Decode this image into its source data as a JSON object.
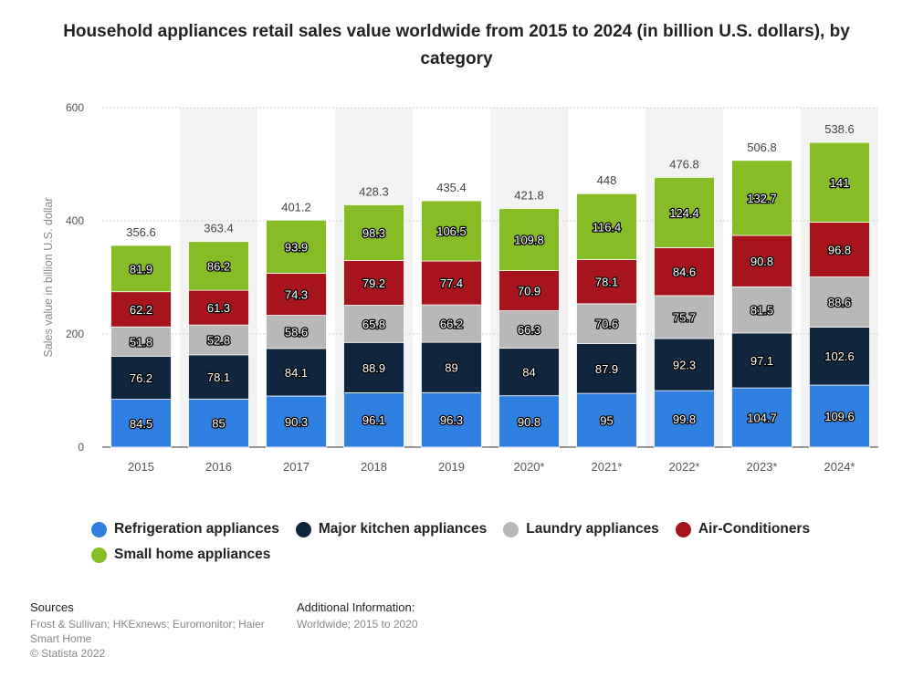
{
  "chart_data": {
    "type": "bar",
    "stacked": true,
    "title": "Household appliances retail sales value worldwide from 2015 to 2024 (in billion U.S. dollars), by category",
    "xlabel": "",
    "ylabel": "Sales value in billion U.S. dollar",
    "ylim": [
      0,
      600
    ],
    "yticks": [
      0,
      200,
      400,
      600
    ],
    "categories": [
      "2015",
      "2016",
      "2017",
      "2018",
      "2019",
      "2020*",
      "2021*",
      "2022*",
      "2023*",
      "2024*"
    ],
    "totals": [
      "356.6",
      "363.4",
      "401.2",
      "428.3",
      "435.4",
      "421.8",
      "448",
      "476.8",
      "506.8",
      "538.6"
    ],
    "series": [
      {
        "name": "Refrigeration appliances",
        "color": "#2e7fe0",
        "values": [
          84.5,
          85,
          90.3,
          96.1,
          96.3,
          90.8,
          95,
          99.8,
          104.7,
          109.6
        ]
      },
      {
        "name": "Major kitchen appliances",
        "color": "#10263f",
        "values": [
          76.2,
          78.1,
          84.1,
          88.9,
          89,
          84,
          87.9,
          92.3,
          97.1,
          102.6
        ]
      },
      {
        "name": "Laundry appliances",
        "color": "#b8b8b8",
        "values": [
          51.8,
          52.8,
          58.6,
          65.8,
          66.2,
          66.3,
          70.6,
          75.7,
          81.5,
          88.6
        ]
      },
      {
        "name": "Air-Conditioners",
        "color": "#a8141c",
        "values": [
          62.2,
          61.3,
          74.3,
          79.2,
          77.4,
          70.9,
          78.1,
          84.6,
          90.8,
          96.8
        ]
      },
      {
        "name": "Small home appliances",
        "color": "#86bc25",
        "values": [
          81.9,
          86.2,
          93.9,
          98.3,
          106.5,
          109.8,
          116.4,
          124.4,
          132.7,
          141
        ]
      }
    ],
    "legend_position": "bottom",
    "grid": true
  },
  "sources": {
    "heading": "Sources",
    "text": "Frost & Sullivan; HKExnews; Euromonitor; Haier Smart Home",
    "copyright": "© Statista 2022"
  },
  "additional_info": {
    "heading": "Additional Information:",
    "text": "Worldwide; 2015 to 2020"
  }
}
